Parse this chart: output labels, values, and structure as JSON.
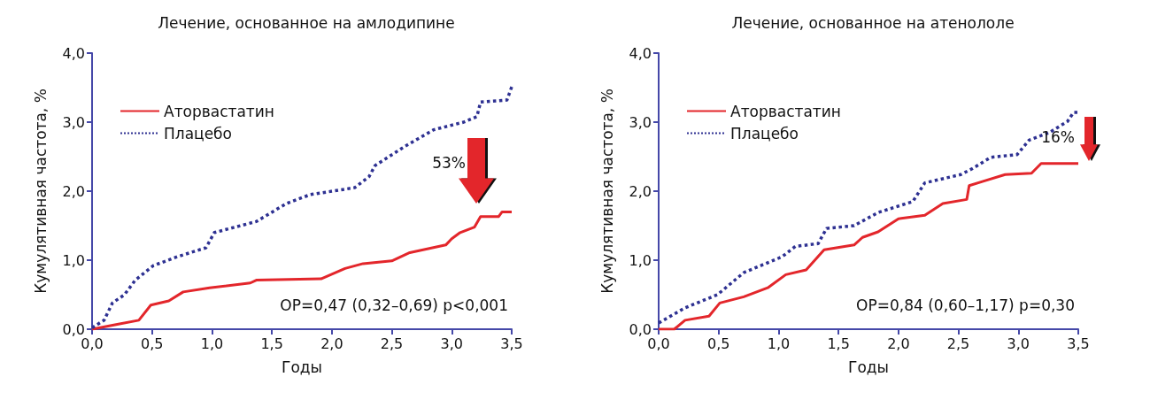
{
  "chart_data": [
    {
      "type": "line",
      "title": "Лечение, основанное на амлодипине",
      "xlabel": "Годы",
      "ylabel": "Кумулятивная частота, %",
      "xlim": [
        0,
        3.5
      ],
      "xticks": [
        {
          "value": 0,
          "label": "0,0"
        },
        {
          "value": 0.5,
          "label": "0,5"
        },
        {
          "value": 1,
          "label": "1,0"
        },
        {
          "value": 1.5,
          "label": "1,5"
        },
        {
          "value": 2,
          "label": "2,0"
        },
        {
          "value": 2.5,
          "label": "2,5"
        },
        {
          "value": 3,
          "label": "3,0"
        },
        {
          "value": 3.5,
          "label": "3,5"
        }
      ],
      "ylim": [
        0,
        4
      ],
      "yticks": [
        {
          "value": 0,
          "label": "0,0"
        },
        {
          "value": 1,
          "label": "1,0"
        },
        {
          "value": 2,
          "label": "2,0"
        },
        {
          "value": 3,
          "label": "3,0"
        },
        {
          "value": 4,
          "label": "4,0"
        }
      ],
      "legend": "top left",
      "grid": false,
      "marker": "none",
      "annotations": [
        "ОР=0,47 (0,32–0,69) p<0,001",
        "53%"
      ],
      "series": [
        {
          "name": "Аторвастатин",
          "color": "#e3262b",
          "line_style": "solid",
          "x": [
            0,
            0.21,
            0.39,
            0.49,
            0.64,
            0.76,
            0.98,
            1.32,
            1.37,
            1.91,
            2.11,
            2.26,
            2.5,
            2.65,
            2.95,
            3.0,
            3.07,
            3.19,
            3.24,
            3.39,
            3.42,
            3.5
          ],
          "values": [
            0,
            0.07,
            0.13,
            0.35,
            0.41,
            0.54,
            0.6,
            0.67,
            0.71,
            0.73,
            0.88,
            0.95,
            0.99,
            1.11,
            1.22,
            1.31,
            1.4,
            1.48,
            1.63,
            1.63,
            1.7,
            1.7
          ]
        },
        {
          "name": "Плацебо",
          "color": "#2e3192",
          "line_style": "dotted",
          "x": [
            0,
            0.1,
            0.17,
            0.27,
            0.36,
            0.51,
            0.71,
            0.95,
            1.02,
            1.37,
            1.62,
            1.82,
            2.19,
            2.31,
            2.36,
            2.61,
            2.85,
            3.1,
            3.21,
            3.24,
            3.46,
            3.5
          ],
          "values": [
            0.02,
            0.13,
            0.38,
            0.5,
            0.71,
            0.92,
            1.05,
            1.18,
            1.4,
            1.56,
            1.82,
            1.95,
            2.05,
            2.21,
            2.37,
            2.65,
            2.89,
            3.0,
            3.08,
            3.29,
            3.32,
            3.51
          ]
        }
      ]
    },
    {
      "type": "line",
      "title": "Лечение, основанное на атенололе",
      "xlabel": "Годы",
      "ylabel": "Кумулятивная частота, %",
      "xlim": [
        0,
        3.5
      ],
      "xticks": [
        {
          "value": 0,
          "label": "0,0"
        },
        {
          "value": 0.5,
          "label": "0,5"
        },
        {
          "value": 1,
          "label": "1,0"
        },
        {
          "value": 1.5,
          "label": "1,5"
        },
        {
          "value": 2,
          "label": "2,0"
        },
        {
          "value": 2.5,
          "label": "2,5"
        },
        {
          "value": 3,
          "label": "3,0"
        },
        {
          "value": 3.5,
          "label": "3,5"
        }
      ],
      "ylim": [
        0,
        4
      ],
      "yticks": [
        {
          "value": 0,
          "label": "0,0"
        },
        {
          "value": 1,
          "label": "1,0"
        },
        {
          "value": 2,
          "label": "2,0"
        },
        {
          "value": 3,
          "label": "3,0"
        },
        {
          "value": 4,
          "label": "4,0"
        }
      ],
      "legend": "top left",
      "grid": false,
      "marker": "none",
      "annotations": [
        "ОР=0,84 (0,60–1,17) p=0,30",
        "16%"
      ],
      "series": [
        {
          "name": "Аторвастатин",
          "color": "#e3262b",
          "line_style": "solid",
          "x": [
            0,
            0.13,
            0.22,
            0.42,
            0.51,
            0.71,
            0.91,
            1.06,
            1.23,
            1.38,
            1.63,
            1.7,
            1.83,
            2.0,
            2.22,
            2.37,
            2.57,
            2.59,
            2.7,
            2.89,
            3.11,
            3.19,
            3.5
          ],
          "values": [
            0,
            0,
            0.13,
            0.19,
            0.38,
            0.47,
            0.6,
            0.79,
            0.86,
            1.15,
            1.22,
            1.33,
            1.41,
            1.6,
            1.65,
            1.82,
            1.88,
            2.08,
            2.14,
            2.24,
            2.26,
            2.4,
            2.4
          ]
        },
        {
          "name": "Плацебо",
          "color": "#2e3192",
          "line_style": "dotted",
          "x": [
            0,
            0.22,
            0.49,
            0.71,
            1.03,
            1.14,
            1.33,
            1.4,
            1.63,
            1.83,
            2.12,
            2.22,
            2.52,
            2.62,
            2.77,
            2.99,
            3.09,
            3.26,
            3.41,
            3.46,
            3.5
          ],
          "values": [
            0.09,
            0.31,
            0.5,
            0.82,
            1.05,
            1.2,
            1.24,
            1.46,
            1.5,
            1.69,
            1.85,
            2.12,
            2.24,
            2.33,
            2.49,
            2.53,
            2.74,
            2.85,
            3.01,
            3.14,
            3.14
          ]
        }
      ]
    }
  ]
}
